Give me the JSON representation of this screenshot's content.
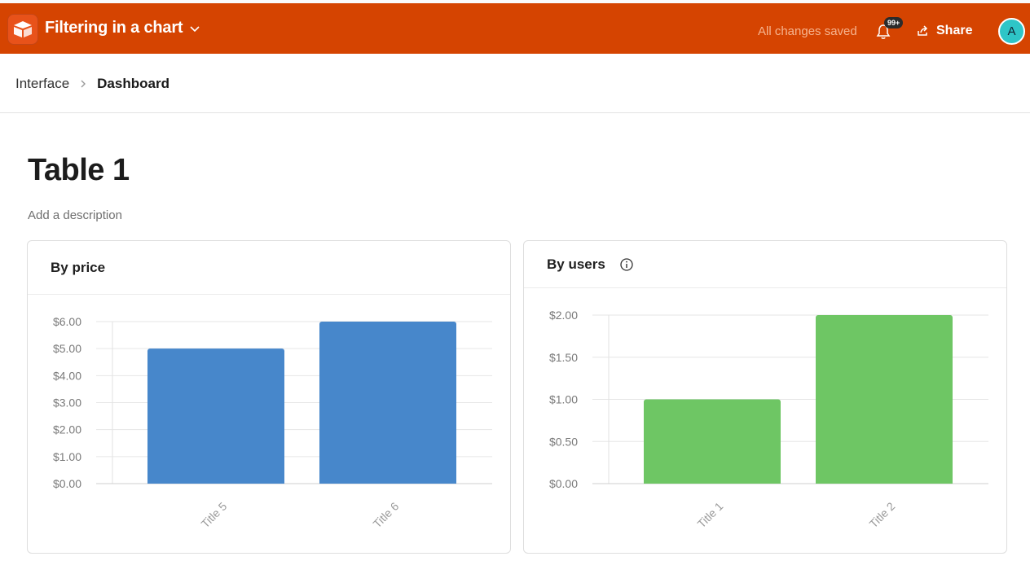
{
  "header": {
    "app_title": "Filtering in a chart",
    "save_status": "All changes saved",
    "notification_count": "99+",
    "share_label": "Share",
    "avatar_initial": "A",
    "brand_color": "#d54401"
  },
  "breadcrumb": {
    "items": [
      "Interface",
      "Dashboard"
    ]
  },
  "page": {
    "title": "Table 1",
    "description_placeholder": "Add a description"
  },
  "charts": [
    {
      "title": "By price",
      "has_info_icon": false,
      "chart_data": {
        "type": "bar",
        "categories": [
          "Title 5",
          "Title 6"
        ],
        "values": [
          5.0,
          6.0
        ],
        "ylim": [
          0,
          6
        ],
        "yticks": [
          "$0.00",
          "$1.00",
          "$2.00",
          "$3.00",
          "$4.00",
          "$5.00",
          "$6.00"
        ],
        "color": "#4787cb",
        "grid": true
      }
    },
    {
      "title": "By users",
      "has_info_icon": true,
      "chart_data": {
        "type": "bar",
        "categories": [
          "Title 1",
          "Title 2"
        ],
        "values": [
          1.0,
          2.0
        ],
        "ylim": [
          0,
          2
        ],
        "yticks": [
          "$0.00",
          "$0.50",
          "$1.00",
          "$1.50",
          "$2.00"
        ],
        "color": "#6ec664",
        "grid": true
      }
    }
  ]
}
